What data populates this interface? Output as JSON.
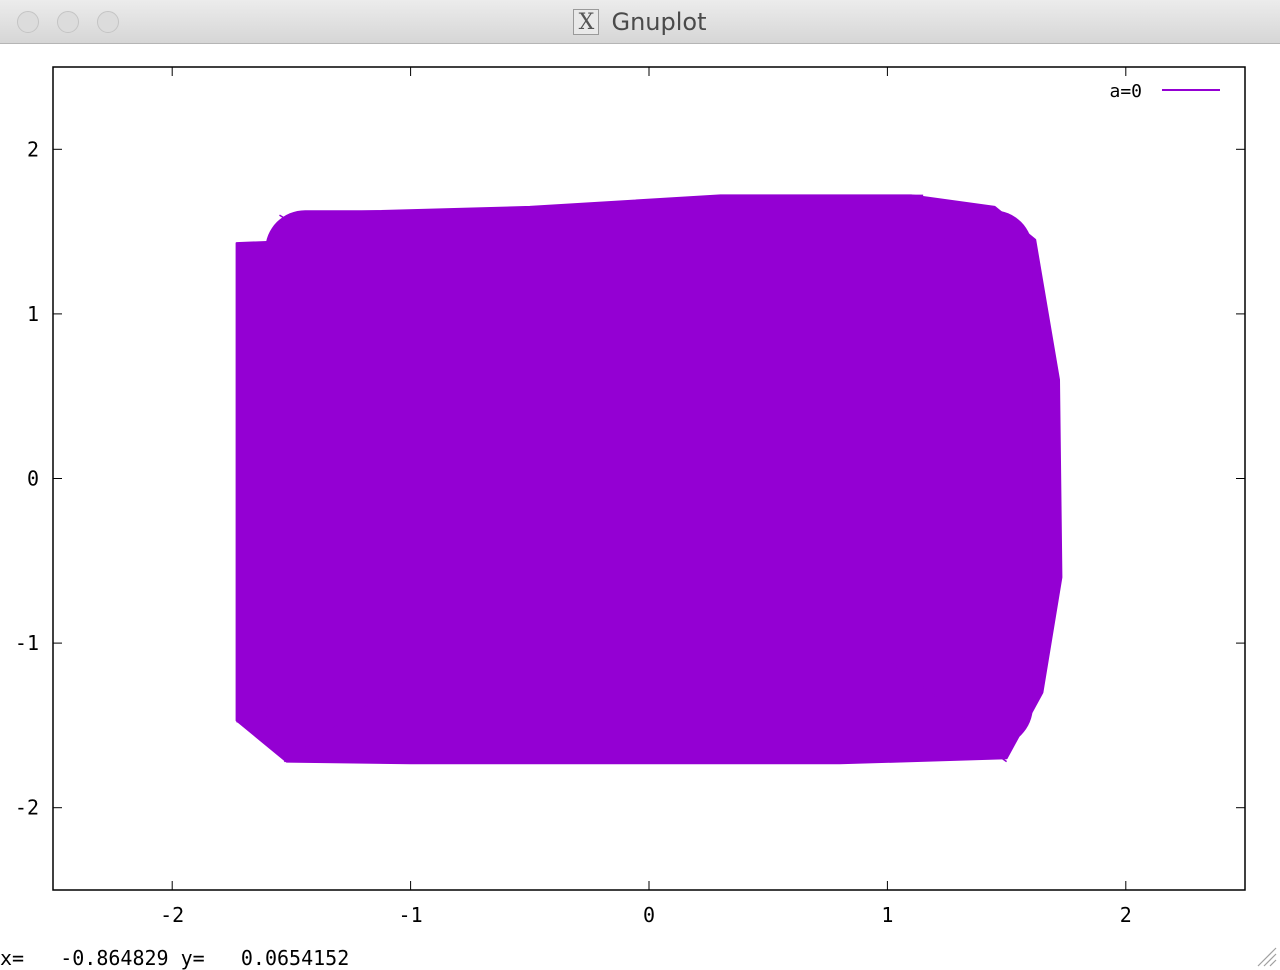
{
  "window": {
    "title": "Gnuplot",
    "icon": "x11-icon"
  },
  "status_bar": {
    "x_label": "x=",
    "x_value": "-0.864829",
    "y_label": "y=",
    "y_value": "0.0654152"
  },
  "chart_data": {
    "type": "line",
    "title": "",
    "xlabel": "",
    "ylabel": "",
    "xlim": [
      -2.5,
      2.5
    ],
    "ylim": [
      -2.5,
      2.5
    ],
    "x_ticks": [
      -2,
      -1,
      0,
      1,
      2
    ],
    "y_ticks": [
      -2,
      -1,
      0,
      1,
      2
    ],
    "x_tick_labels": [
      "-2",
      "-1",
      "0",
      "1",
      "2"
    ],
    "y_tick_labels": [
      "-2",
      "-1",
      "0",
      "1",
      "2"
    ],
    "grid": false,
    "legend_position": "top-right",
    "color": "#9400d3",
    "series": [
      {
        "name": "a=0",
        "description_extent": {
          "x_range": [
            -1.73,
            1.73
          ],
          "y_range": [
            -1.73,
            1.73
          ]
        },
        "outline": [
          {
            "x": -1.55,
            "y": 1.44
          },
          {
            "x": -1.25,
            "y": 1.62
          },
          {
            "x": -0.5,
            "y": 1.65
          },
          {
            "x": 0.3,
            "y": 1.72
          },
          {
            "x": 1.1,
            "y": 1.72
          },
          {
            "x": 1.45,
            "y": 1.65
          },
          {
            "x": 1.62,
            "y": 1.45
          },
          {
            "x": 1.72,
            "y": 0.6
          },
          {
            "x": 1.73,
            "y": -0.6
          },
          {
            "x": 1.65,
            "y": -1.3
          },
          {
            "x": 1.5,
            "y": -1.7
          },
          {
            "x": 0.8,
            "y": -1.73
          },
          {
            "x": -0.2,
            "y": -1.73
          },
          {
            "x": -1.0,
            "y": -1.73
          },
          {
            "x": -1.52,
            "y": -1.72
          },
          {
            "x": -1.73,
            "y": -1.47
          },
          {
            "x": -1.73,
            "y": -1.1
          },
          {
            "x": -1.73,
            "y": -0.7
          },
          {
            "x": -1.73,
            "y": 0.3
          },
          {
            "x": -1.73,
            "y": 0.99
          },
          {
            "x": -1.73,
            "y": 1.43
          }
        ]
      }
    ]
  }
}
